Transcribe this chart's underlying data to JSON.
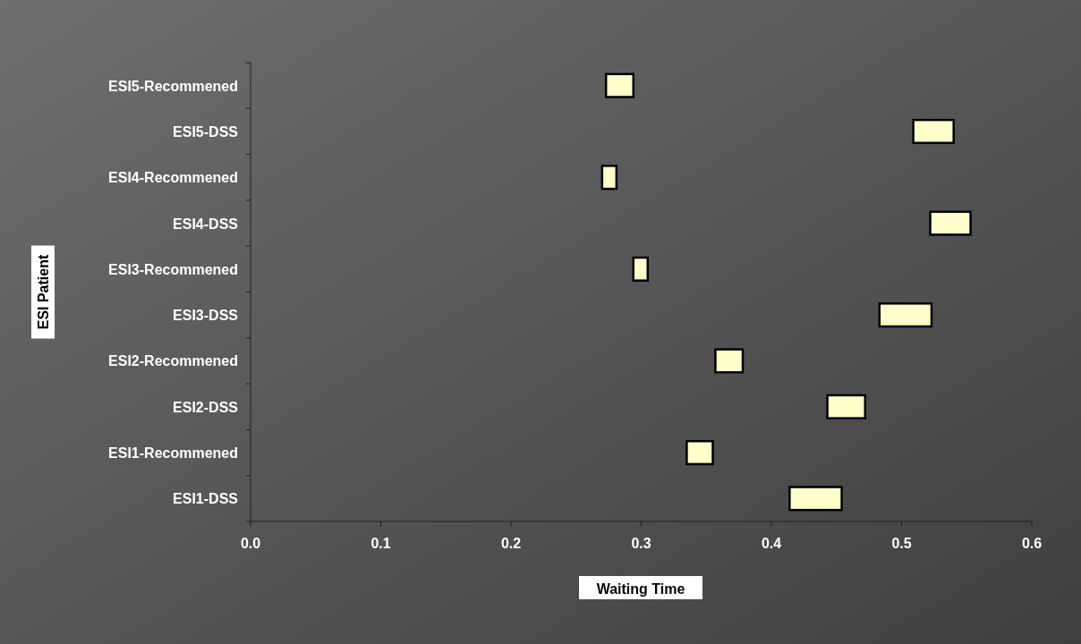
{
  "chart_data": {
    "type": "bar",
    "orientation": "horizontal",
    "xlabel": "Waiting Time",
    "ylabel": "ESI Patient",
    "categories": [
      "ESI5-Recommened",
      "ESI5-DSS",
      "ESI4-Recommened",
      "ESI4-DSS",
      "ESI3-Recommened",
      "ESI3-DSS",
      "ESI2-Recommened",
      "ESI2-DSS",
      "ESI1-Recommened",
      "ESI1-DSS"
    ],
    "base": [
      0.273,
      0.509,
      0.27,
      0.522,
      0.294,
      0.483,
      0.357,
      0.443,
      0.335,
      0.414
    ],
    "values": [
      0.021,
      0.031,
      0.011,
      0.031,
      0.011,
      0.04,
      0.021,
      0.029,
      0.02,
      0.04
    ],
    "color": "#ffffcc",
    "xlim": [
      0,
      0.6
    ],
    "xticks": [
      {
        "value": 0,
        "label": "0.0"
      },
      {
        "value": 0.1,
        "label": "0.1"
      },
      {
        "value": 0.2,
        "label": "0.2"
      },
      {
        "value": 0.3,
        "label": "0.3"
      },
      {
        "value": 0.4,
        "label": "0.4"
      },
      {
        "value": 0.5,
        "label": "0.5"
      },
      {
        "value": 0.6,
        "label": "0.6"
      }
    ],
    "grid": false
  }
}
